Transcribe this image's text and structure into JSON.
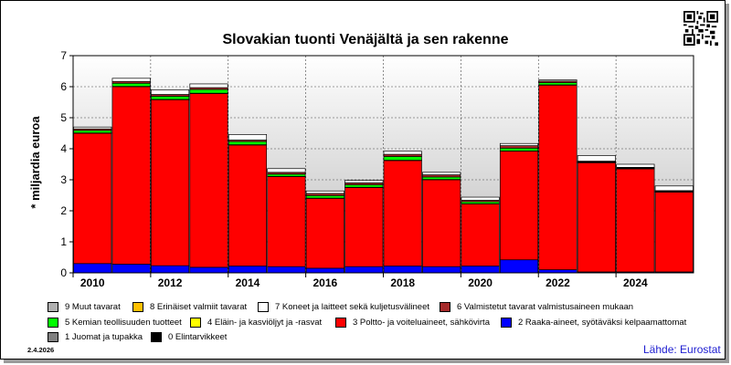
{
  "footer": {
    "date": "2.4.2026",
    "source": "Lähde: Eurostat"
  },
  "qr_code": {
    "icon": "qr-code-icon"
  },
  "chart_data": {
    "type": "bar",
    "stacked": true,
    "title": "Slovakian tuonti Venäjältä ja sen rakenne",
    "ylabel": "* miljardia euroa",
    "xlabel": "",
    "ylim": [
      0,
      7
    ],
    "yticks": [
      "0",
      "1",
      "2",
      "3",
      "4",
      "5",
      "6",
      "7"
    ],
    "grid": true,
    "background_gradient": true,
    "legend_position": "bottom",
    "categories": [
      "2010",
      "2011",
      "2012",
      "2013",
      "2014",
      "2015",
      "2016",
      "2017",
      "2018",
      "2019",
      "2020",
      "2021",
      "2022",
      "2023",
      "2024",
      "2025"
    ],
    "xtick_labels": [
      "2010",
      "",
      "2012",
      "",
      "2014",
      "",
      "2016",
      "",
      "2018",
      "",
      "2020",
      "",
      "2022",
      "",
      "2024",
      ""
    ],
    "series": [
      {
        "name": "0 Elintarvikkeet",
        "color": "#000000",
        "values": [
          0,
          0,
          0,
          0,
          0,
          0,
          0,
          0,
          0,
          0,
          0,
          0,
          0,
          0,
          0,
          0
        ]
      },
      {
        "name": "1 Juomat ja tupakka",
        "color": "#808080",
        "values": [
          0,
          0,
          0,
          0,
          0,
          0,
          0,
          0,
          0,
          0,
          0,
          0,
          0,
          0,
          0,
          0
        ]
      },
      {
        "name": "2 Raaka-aineet, syötäväksi kelpaamattomat",
        "color": "#0000ff",
        "values": [
          0.3,
          0.28,
          0.23,
          0.18,
          0.22,
          0.2,
          0.15,
          0.2,
          0.22,
          0.2,
          0.22,
          0.42,
          0.1,
          0.03,
          0.03,
          0.03
        ]
      },
      {
        "name": "3 Poltto- ja voiteluaineet, sähkövirta",
        "color": "#ff0000",
        "values": [
          4.2,
          5.72,
          5.35,
          5.6,
          3.9,
          2.9,
          2.25,
          2.55,
          3.4,
          2.8,
          2.0,
          3.5,
          5.95,
          3.52,
          3.32,
          2.57
        ]
      },
      {
        "name": "4 Eläin- ja kasviöljyt ja -rasvat",
        "color": "#ffff00",
        "values": [
          0.01,
          0.01,
          0.01,
          0.01,
          0.01,
          0.01,
          0.01,
          0.01,
          0.01,
          0.01,
          0.01,
          0.01,
          0.01,
          0.01,
          0.01,
          0.01
        ]
      },
      {
        "name": "5 Kemian teollisuuden tuotteet",
        "color": "#00ff00",
        "values": [
          0.08,
          0.1,
          0.1,
          0.12,
          0.1,
          0.07,
          0.08,
          0.08,
          0.12,
          0.08,
          0.06,
          0.09,
          0.07,
          0.02,
          0.02,
          0.02
        ]
      },
      {
        "name": "6 Valmistetut tavarat valmistusaineen mukaan",
        "color": "#a52a2a",
        "values": [
          0.05,
          0.06,
          0.06,
          0.06,
          0.05,
          0.06,
          0.07,
          0.06,
          0.07,
          0.07,
          0.05,
          0.08,
          0.05,
          0.02,
          0.02,
          0.02
        ]
      },
      {
        "name": "7 Koneet ja laitteet sekä kuljetusvälineet",
        "color": "#ffffff",
        "values": [
          0.06,
          0.1,
          0.15,
          0.12,
          0.18,
          0.12,
          0.08,
          0.08,
          0.1,
          0.08,
          0.1,
          0.07,
          0.04,
          0.18,
          0.1,
          0.15
        ]
      },
      {
        "name": "8 Erinäiset valmiit tavarat",
        "color": "#ffc000",
        "values": [
          0,
          0,
          0,
          0,
          0,
          0,
          0,
          0,
          0,
          0,
          0,
          0,
          0,
          0,
          0,
          0
        ]
      },
      {
        "name": "9 Muut tavarat",
        "color": "#b0b0b0",
        "values": [
          0,
          0,
          0,
          0,
          0,
          0,
          0,
          0,
          0,
          0,
          0,
          0,
          0,
          0,
          0,
          0
        ]
      }
    ]
  }
}
